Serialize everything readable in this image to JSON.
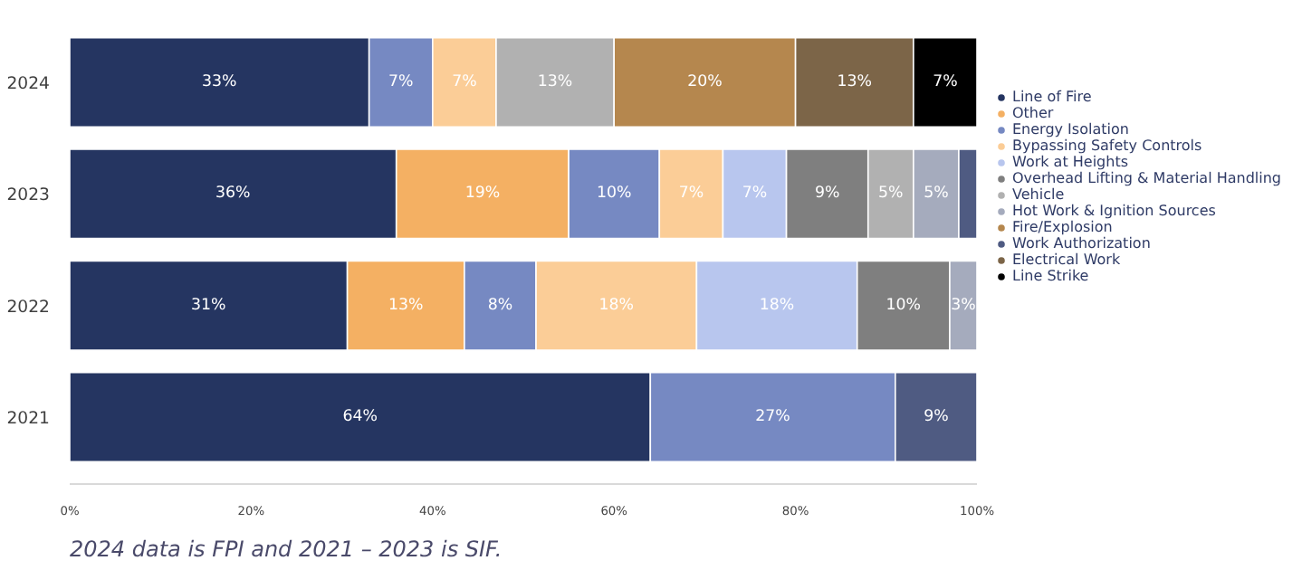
{
  "chart_data": {
    "type": "bar",
    "orientation": "horizontal",
    "stacked": true,
    "categories": [
      "2024",
      "2023",
      "2022",
      "2021"
    ],
    "xlim": [
      0,
      100
    ],
    "xticks": [
      {
        "value": 0,
        "label": "0%"
      },
      {
        "value": 20,
        "label": "20%"
      },
      {
        "value": 40,
        "label": "40%"
      },
      {
        "value": 60,
        "label": "60%"
      },
      {
        "value": 80,
        "label": "80%"
      },
      {
        "value": 100,
        "label": "100%"
      }
    ],
    "legend": "right",
    "annotations": [
      "2024 data is FPI and 2021 – 2023 is SIF."
    ],
    "series": [
      {
        "name": "Line of Fire",
        "color": "#253561",
        "values": [
          33,
          36,
          30.6,
          64
        ],
        "value_labels": [
          "33%",
          "36%",
          "31%",
          "64%"
        ]
      },
      {
        "name": "Other",
        "color": "#f4b063",
        "values": [
          null,
          19,
          12.9,
          null
        ],
        "value_labels": [
          null,
          "19%",
          "13%",
          null
        ]
      },
      {
        "name": "Energy Isolation",
        "color": "#7689c2",
        "values": [
          7,
          10,
          7.9,
          27
        ],
        "value_labels": [
          "7%",
          "10%",
          "8%",
          "27%"
        ]
      },
      {
        "name": "Bypassing Safety Controls",
        "color": "#fbcd97",
        "values": [
          7,
          7,
          17.7,
          null
        ],
        "value_labels": [
          "7%",
          "7%",
          "18%",
          null
        ]
      },
      {
        "name": "Work at Heights",
        "color": "#b8c6ee",
        "values": [
          null,
          7,
          17.7,
          null
        ],
        "value_labels": [
          null,
          "7%",
          "18%",
          null
        ]
      },
      {
        "name": "Overhead Lifting & Material Handling",
        "color": "#7f7f7f",
        "values": [
          null,
          9,
          10.2,
          null
        ],
        "value_labels": [
          null,
          "9%",
          "10%",
          null
        ]
      },
      {
        "name": "Vehicle",
        "color": "#b1b1b1",
        "values": [
          13,
          5,
          null,
          null
        ],
        "value_labels": [
          "13%",
          "5%",
          null,
          null
        ]
      },
      {
        "name": "Hot Work & Ignition Sources",
        "color": "#a5abbd",
        "values": [
          null,
          5,
          3,
          null
        ],
        "value_labels": [
          null,
          "5%",
          "3%",
          null
        ]
      },
      {
        "name": "Fire/Explosion",
        "color": "#b5874e",
        "values": [
          20,
          null,
          null,
          null
        ],
        "value_labels": [
          "20%",
          null,
          null,
          null
        ]
      },
      {
        "name": "Work Authorization",
        "color": "#4f5b82",
        "values": [
          null,
          2,
          null,
          9
        ],
        "value_labels": [
          null,
          null,
          null,
          "9%"
        ]
      },
      {
        "name": "Electrical Work",
        "color": "#7c6548",
        "values": [
          13,
          null,
          null,
          null
        ],
        "value_labels": [
          "13%",
          null,
          null,
          null
        ]
      },
      {
        "name": "Line Strike",
        "color": "#000000",
        "values": [
          7,
          null,
          null,
          null
        ],
        "value_labels": [
          "7%",
          null,
          null,
          null
        ]
      }
    ]
  }
}
